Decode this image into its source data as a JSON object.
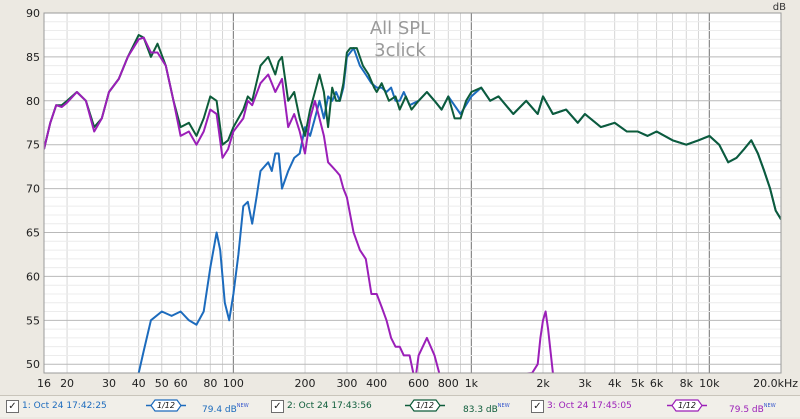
{
  "chart_data": {
    "type": "line",
    "title": "All SPL",
    "subtitle": "3click",
    "ylabel": "dB",
    "xlabel": "",
    "x_scale": "log",
    "xlim": [
      16,
      20000
    ],
    "ylim": [
      49,
      90
    ],
    "grid": true,
    "y_ticks": [
      "50",
      "55",
      "60",
      "65",
      "70",
      "75",
      "80",
      "85",
      "90"
    ],
    "x_ticks": [
      "16",
      "20",
      "30",
      "40",
      "50",
      "60",
      "80",
      "100",
      "200",
      "300",
      "400",
      "600",
      "800",
      "1k",
      "2k",
      "3k",
      "4k",
      "5k",
      "6k",
      "8k",
      "10k",
      "20.0kHz"
    ],
    "series": [
      {
        "name": "1: Oct 24 17:42:25",
        "color": "#1c6bbd",
        "points": [
          [
            40,
            49
          ],
          [
            42,
            51.5
          ],
          [
            45,
            55
          ],
          [
            50,
            56
          ],
          [
            55,
            55.5
          ],
          [
            60,
            56
          ],
          [
            65,
            55
          ],
          [
            70,
            54.5
          ],
          [
            75,
            56
          ],
          [
            80,
            61
          ],
          [
            85,
            65
          ],
          [
            88,
            63
          ],
          [
            92,
            57
          ],
          [
            96,
            55
          ],
          [
            100,
            58
          ],
          [
            105,
            62.5
          ],
          [
            110,
            68
          ],
          [
            115,
            68.5
          ],
          [
            120,
            66
          ],
          [
            125,
            69
          ],
          [
            130,
            72
          ],
          [
            140,
            73
          ],
          [
            145,
            72
          ],
          [
            150,
            74
          ],
          [
            155,
            74
          ],
          [
            160,
            70
          ],
          [
            170,
            72
          ],
          [
            180,
            73.5
          ],
          [
            190,
            74
          ],
          [
            200,
            77
          ],
          [
            210,
            76
          ],
          [
            220,
            78
          ],
          [
            230,
            80
          ],
          [
            240,
            78
          ],
          [
            250,
            80.5
          ],
          [
            260,
            80
          ],
          [
            270,
            81
          ],
          [
            280,
            80
          ],
          [
            290,
            81.5
          ],
          [
            300,
            85
          ],
          [
            320,
            86
          ],
          [
            340,
            84
          ],
          [
            360,
            83
          ],
          [
            380,
            82
          ],
          [
            400,
            81.5
          ],
          [
            420,
            81.5
          ],
          [
            440,
            81
          ],
          [
            460,
            81.5
          ],
          [
            480,
            80
          ],
          [
            500,
            80
          ],
          [
            520,
            81
          ],
          [
            550,
            79.5
          ],
          [
            600,
            80
          ],
          [
            650,
            81
          ],
          [
            700,
            80
          ],
          [
            750,
            79
          ],
          [
            800,
            80.5
          ],
          [
            900,
            78.5
          ],
          [
            1000,
            80.5
          ],
          [
            1100,
            81.5
          ],
          [
            1200,
            80
          ],
          [
            1300,
            80.5
          ],
          [
            1500,
            78.5
          ],
          [
            1700,
            80
          ],
          [
            1900,
            78.5
          ],
          [
            2000,
            80.5
          ],
          [
            2200,
            78.5
          ],
          [
            2500,
            79
          ],
          [
            2800,
            77.5
          ],
          [
            3000,
            78.5
          ],
          [
            3500,
            77
          ],
          [
            4000,
            77.5
          ],
          [
            4500,
            76.5
          ],
          [
            5000,
            76.5
          ],
          [
            5500,
            76
          ],
          [
            6000,
            76.5
          ],
          [
            7000,
            75.5
          ],
          [
            8000,
            75
          ],
          [
            9000,
            75.5
          ],
          [
            10000,
            76
          ],
          [
            11000,
            75
          ],
          [
            12000,
            73
          ],
          [
            13000,
            73.5
          ],
          [
            14000,
            74.5
          ],
          [
            15000,
            75.5
          ],
          [
            16000,
            74
          ],
          [
            17000,
            72
          ],
          [
            18000,
            70
          ],
          [
            19000,
            67.5
          ],
          [
            20000,
            66.5
          ]
        ]
      },
      {
        "name": "2: Oct 24 17:43:56",
        "color": "#0d5c3a",
        "points": [
          [
            16,
            74.5
          ],
          [
            17,
            77.5
          ],
          [
            18,
            79.5
          ],
          [
            19,
            79.5
          ],
          [
            20,
            80
          ],
          [
            22,
            81
          ],
          [
            24,
            80
          ],
          [
            26,
            77
          ],
          [
            28,
            78
          ],
          [
            30,
            81
          ],
          [
            33,
            82.5
          ],
          [
            36,
            85
          ],
          [
            40,
            87.5
          ],
          [
            42,
            87.2
          ],
          [
            45,
            85
          ],
          [
            48,
            86.5
          ],
          [
            52,
            84
          ],
          [
            56,
            80
          ],
          [
            60,
            77
          ],
          [
            65,
            77.5
          ],
          [
            70,
            76
          ],
          [
            75,
            78
          ],
          [
            80,
            80.5
          ],
          [
            85,
            80
          ],
          [
            90,
            75
          ],
          [
            95,
            75.5
          ],
          [
            100,
            77
          ],
          [
            110,
            79
          ],
          [
            115,
            80.5
          ],
          [
            120,
            80
          ],
          [
            130,
            84
          ],
          [
            140,
            85
          ],
          [
            150,
            83
          ],
          [
            155,
            84.5
          ],
          [
            160,
            85
          ],
          [
            170,
            80
          ],
          [
            180,
            81
          ],
          [
            190,
            78
          ],
          [
            200,
            76
          ],
          [
            210,
            79
          ],
          [
            220,
            81
          ],
          [
            230,
            83
          ],
          [
            240,
            81
          ],
          [
            250,
            77
          ],
          [
            260,
            81.5
          ],
          [
            270,
            80
          ],
          [
            280,
            80
          ],
          [
            290,
            82
          ],
          [
            300,
            85.5
          ],
          [
            310,
            86
          ],
          [
            330,
            86
          ],
          [
            350,
            84
          ],
          [
            370,
            83
          ],
          [
            390,
            81.5
          ],
          [
            400,
            81
          ],
          [
            420,
            82
          ],
          [
            450,
            80
          ],
          [
            480,
            80.5
          ],
          [
            500,
            79
          ],
          [
            530,
            80.5
          ],
          [
            560,
            79
          ],
          [
            600,
            80
          ],
          [
            650,
            81
          ],
          [
            700,
            80
          ],
          [
            750,
            79
          ],
          [
            800,
            80.5
          ],
          [
            850,
            78
          ],
          [
            900,
            78
          ],
          [
            950,
            80
          ],
          [
            1000,
            81
          ],
          [
            1100,
            81.5
          ],
          [
            1200,
            80
          ],
          [
            1300,
            80.5
          ],
          [
            1500,
            78.5
          ],
          [
            1700,
            80
          ],
          [
            1900,
            78.5
          ],
          [
            2000,
            80.5
          ],
          [
            2200,
            78.5
          ],
          [
            2500,
            79
          ],
          [
            2800,
            77.5
          ],
          [
            3000,
            78.5
          ],
          [
            3500,
            77
          ],
          [
            4000,
            77.5
          ],
          [
            4500,
            76.5
          ],
          [
            5000,
            76.5
          ],
          [
            5500,
            76
          ],
          [
            6000,
            76.5
          ],
          [
            7000,
            75.5
          ],
          [
            8000,
            75
          ],
          [
            9000,
            75.5
          ],
          [
            10000,
            76
          ],
          [
            11000,
            75
          ],
          [
            12000,
            73
          ],
          [
            13000,
            73.5
          ],
          [
            14000,
            74.5
          ],
          [
            15000,
            75.5
          ],
          [
            16000,
            74
          ],
          [
            17000,
            72
          ],
          [
            18000,
            70
          ],
          [
            19000,
            67.5
          ],
          [
            20000,
            66.5
          ]
        ]
      },
      {
        "name": "3: Oct 24 17:45:05",
        "color": "#9b1fb8",
        "points": [
          [
            16,
            74.5
          ],
          [
            17,
            77.5
          ],
          [
            18,
            79.5
          ],
          [
            19,
            79.3
          ],
          [
            20,
            79.8
          ],
          [
            22,
            81
          ],
          [
            24,
            80
          ],
          [
            26,
            76.5
          ],
          [
            28,
            78
          ],
          [
            30,
            81
          ],
          [
            33,
            82.5
          ],
          [
            36,
            85
          ],
          [
            40,
            87
          ],
          [
            42,
            87.2
          ],
          [
            45,
            85.5
          ],
          [
            48,
            85.5
          ],
          [
            52,
            84
          ],
          [
            56,
            80
          ],
          [
            60,
            76
          ],
          [
            65,
            76.5
          ],
          [
            70,
            75
          ],
          [
            75,
            76.5
          ],
          [
            80,
            79
          ],
          [
            85,
            78.5
          ],
          [
            90,
            73.5
          ],
          [
            95,
            74.5
          ],
          [
            100,
            76.5
          ],
          [
            110,
            78
          ],
          [
            115,
            80
          ],
          [
            120,
            79.5
          ],
          [
            130,
            82
          ],
          [
            140,
            83
          ],
          [
            145,
            82
          ],
          [
            150,
            81
          ],
          [
            160,
            82.5
          ],
          [
            170,
            77
          ],
          [
            180,
            78.5
          ],
          [
            190,
            76.5
          ],
          [
            200,
            74
          ],
          [
            210,
            78
          ],
          [
            220,
            80
          ],
          [
            230,
            78
          ],
          [
            240,
            76
          ],
          [
            250,
            73
          ],
          [
            260,
            72.5
          ],
          [
            270,
            72
          ],
          [
            280,
            71.5
          ],
          [
            290,
            70
          ],
          [
            300,
            69
          ],
          [
            320,
            65
          ],
          [
            340,
            63
          ],
          [
            360,
            62
          ],
          [
            380,
            58
          ],
          [
            400,
            58
          ],
          [
            420,
            56.5
          ],
          [
            440,
            55
          ],
          [
            460,
            53
          ],
          [
            480,
            52
          ],
          [
            500,
            52
          ],
          [
            520,
            51
          ],
          [
            550,
            51
          ],
          [
            580,
            48
          ],
          [
            600,
            51
          ],
          [
            650,
            53
          ],
          [
            700,
            51
          ],
          [
            750,
            48
          ],
          [
            1800,
            49
          ],
          [
            1900,
            50
          ],
          [
            1950,
            53
          ],
          [
            2000,
            55
          ],
          [
            2050,
            56
          ],
          [
            2100,
            54
          ],
          [
            2200,
            49
          ]
        ]
      }
    ]
  },
  "legend": {
    "items": [
      {
        "checked": "✓",
        "label": "1: Oct 24 17:42:25",
        "smoothing": "1/12",
        "level": "79.4 dB",
        "badge": "NEW",
        "color": "#1c6bbd"
      },
      {
        "checked": "✓",
        "label": "2: Oct 24 17:43:56",
        "smoothing": "1/12",
        "level": "83.3 dB",
        "badge": "NEW",
        "color": "#0d5c3a"
      },
      {
        "checked": "✓",
        "label": "3: Oct 24 17:45:05",
        "smoothing": "1/12",
        "level": "79.5 dB",
        "badge": "NEW",
        "color": "#9b1fb8"
      }
    ]
  }
}
